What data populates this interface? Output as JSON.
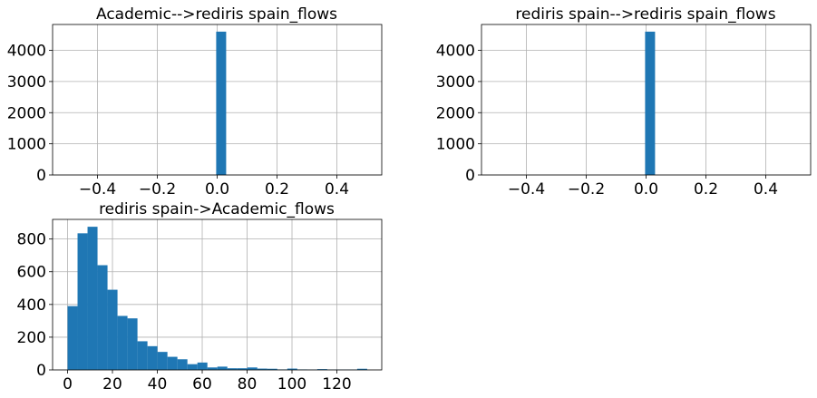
{
  "colors": {
    "bar": "#1f77b4",
    "grid": "#b0b0b0",
    "axis": "#000000"
  },
  "chart_data": [
    {
      "type": "bar",
      "title": "Academic-->rediris spain_flows",
      "xlim": [
        -0.55,
        0.55
      ],
      "ylim": [
        0,
        4830
      ],
      "xticks": [
        -0.4,
        -0.2,
        0.0,
        0.2,
        0.4
      ],
      "xtick_labels": [
        "−0.4",
        "−0.2",
        "0.0",
        "0.2",
        "0.4"
      ],
      "yticks": [
        0,
        1000,
        2000,
        3000,
        4000
      ],
      "ytick_labels": [
        "0",
        "1000",
        "2000",
        "3000",
        "4000"
      ],
      "bin_width": 0.0333,
      "bins": [
        {
          "x0": -0.0033,
          "value": 4600
        }
      ],
      "grid": true
    },
    {
      "type": "bar",
      "title": "rediris spain-->rediris spain_flows",
      "xlim": [
        -0.55,
        0.55
      ],
      "ylim": [
        0,
        4830
      ],
      "xticks": [
        -0.4,
        -0.2,
        0.0,
        0.2,
        0.4
      ],
      "xtick_labels": [
        "−0.4",
        "−0.2",
        "0.0",
        "0.2",
        "0.4"
      ],
      "yticks": [
        0,
        1000,
        2000,
        3000,
        4000
      ],
      "ytick_labels": [
        "0",
        "1000",
        "2000",
        "3000",
        "4000"
      ],
      "bin_width": 0.0333,
      "bins": [
        {
          "x0": -0.0033,
          "value": 4600
        }
      ],
      "grid": true
    },
    {
      "type": "bar",
      "title": "rediris spain->Academic_flows",
      "xlim": [
        -6.67,
        140.0
      ],
      "ylim": [
        0,
        920
      ],
      "xticks": [
        0,
        20,
        40,
        60,
        80,
        100,
        120
      ],
      "xtick_labels": [
        "0",
        "20",
        "40",
        "60",
        "80",
        "100",
        "120"
      ],
      "yticks": [
        0,
        200,
        400,
        600,
        800
      ],
      "ytick_labels": [
        "0",
        "200",
        "400",
        "600",
        "800"
      ],
      "bin_width": 4.45,
      "bins": [
        {
          "x0": 0.0,
          "value": 390
        },
        {
          "x0": 4.45,
          "value": 835
        },
        {
          "x0": 8.9,
          "value": 875
        },
        {
          "x0": 13.35,
          "value": 640
        },
        {
          "x0": 17.8,
          "value": 490
        },
        {
          "x0": 22.25,
          "value": 330
        },
        {
          "x0": 26.7,
          "value": 315
        },
        {
          "x0": 31.15,
          "value": 175
        },
        {
          "x0": 35.6,
          "value": 145
        },
        {
          "x0": 40.05,
          "value": 110
        },
        {
          "x0": 44.5,
          "value": 80
        },
        {
          "x0": 48.95,
          "value": 65
        },
        {
          "x0": 53.4,
          "value": 35
        },
        {
          "x0": 57.85,
          "value": 45
        },
        {
          "x0": 62.3,
          "value": 15
        },
        {
          "x0": 66.75,
          "value": 20
        },
        {
          "x0": 71.2,
          "value": 10
        },
        {
          "x0": 75.65,
          "value": 10
        },
        {
          "x0": 80.1,
          "value": 15
        },
        {
          "x0": 84.55,
          "value": 8
        },
        {
          "x0": 89.0,
          "value": 7
        },
        {
          "x0": 93.45,
          "value": 3
        },
        {
          "x0": 97.9,
          "value": 8
        },
        {
          "x0": 102.35,
          "value": 3
        },
        {
          "x0": 106.8,
          "value": 2
        },
        {
          "x0": 111.25,
          "value": 5
        },
        {
          "x0": 115.7,
          "value": 2
        },
        {
          "x0": 120.15,
          "value": 2
        },
        {
          "x0": 124.6,
          "value": 2
        },
        {
          "x0": 129.05,
          "value": 7
        }
      ],
      "grid": true
    }
  ]
}
